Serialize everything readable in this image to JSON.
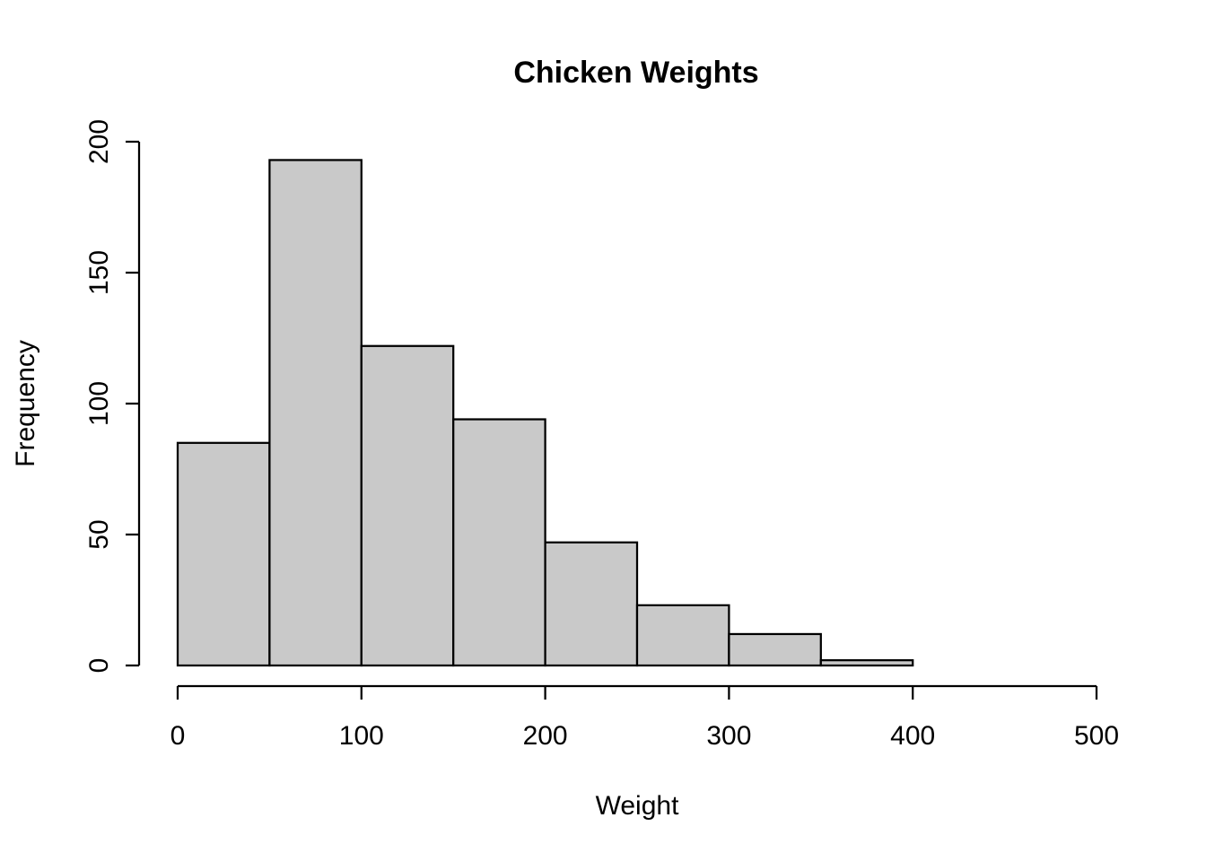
{
  "figure": {
    "background_color": "#FFFFFF",
    "title": "Chicken Weights"
  },
  "chart_data": {
    "type": "bar",
    "chart_kind": "histogram",
    "title": "Chicken Weights",
    "xlabel": "Weight",
    "ylabel": "Frequency",
    "categories": [
      "0-50",
      "50-100",
      "100-150",
      "150-200",
      "200-250",
      "250-300",
      "300-350",
      "350-400"
    ],
    "bin_edges": [
      0,
      50,
      100,
      150,
      200,
      250,
      300,
      350,
      400
    ],
    "bin_width": 50,
    "values": [
      85,
      193,
      122,
      94,
      47,
      23,
      12,
      2
    ],
    "xlim": [
      0,
      500
    ],
    "ylim": [
      0,
      200
    ],
    "x_ticks": [
      0,
      100,
      200,
      300,
      400,
      500
    ],
    "y_ticks": [
      0,
      50,
      100,
      150,
      200
    ],
    "grid": false,
    "legend": false,
    "bar_fill_color": "#C9C9C9",
    "bar_border_color": "#000000",
    "axis_color": "#000000",
    "text_color": "#000000"
  }
}
